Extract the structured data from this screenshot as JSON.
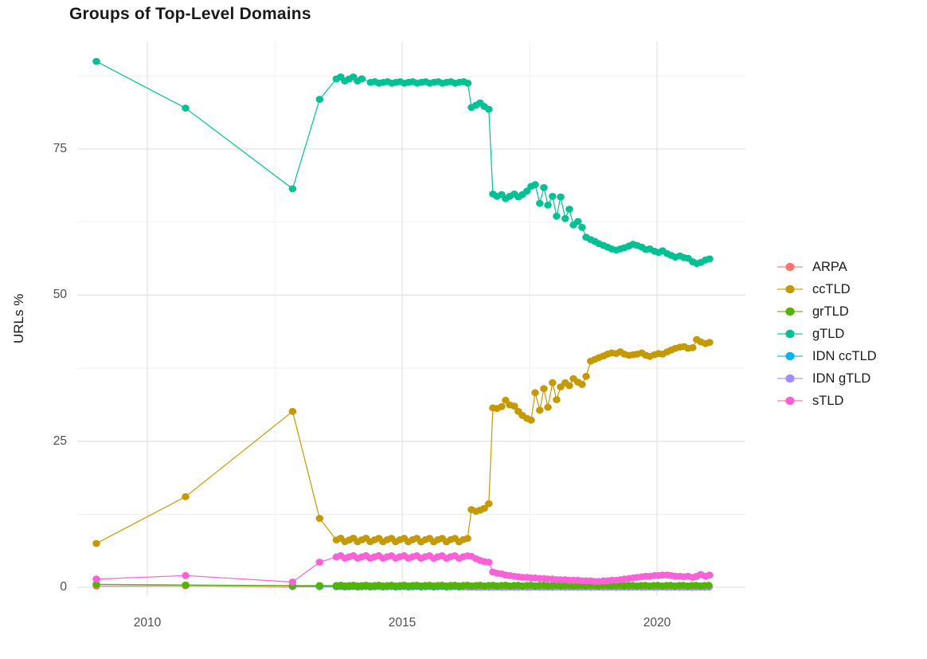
{
  "title": "Groups of Top-Level Domains",
  "chart_data": {
    "type": "line",
    "title": "Groups of Top-Level Domains",
    "xlabel": "",
    "ylabel": "URLs %",
    "x_ticks": [
      2010,
      2015,
      2020
    ],
    "x_minor_ticks": [
      2012.5,
      2017.5
    ],
    "y_ticks": [
      0,
      25,
      50,
      75
    ],
    "y_minor_ticks": [
      12.5,
      37.5,
      62.5,
      87.5
    ],
    "xlim": [
      2008.6,
      2021.7
    ],
    "ylim": [
      -1.5,
      93.5
    ],
    "grid": "on",
    "legend_position": "right",
    "colors": {
      "major_grid": "#e3e3e3",
      "minor_grid": "#efefef",
      "axis_text": "#4d4d4d",
      "title_text": "#1a1a1a"
    },
    "series": [
      {
        "name": "ARPA",
        "color": "#F8766D",
        "points": [
          [
            2009,
            0.2
          ],
          [
            2010.75,
            0.25
          ],
          [
            2012.85,
            0.1
          ],
          [
            2013.38,
            0.1
          ]
        ],
        "runs": [
          {
            "from": 2013.71,
            "to": 2021.03,
            "step": 0.083,
            "level": 0.08,
            "jitter": 0.04
          }
        ]
      },
      {
        "name": "ccTLD",
        "color": "#C49A00",
        "points": [
          [
            2009,
            7.5
          ],
          [
            2010.75,
            15.5
          ],
          [
            2012.85,
            30.1
          ],
          [
            2013.38,
            11.8
          ],
          [
            2016.36,
            13.3
          ],
          [
            2016.45,
            13.0
          ],
          [
            2016.53,
            13.2
          ],
          [
            2016.61,
            13.5
          ],
          [
            2016.7,
            14.3
          ],
          [
            2016.78,
            30.7
          ],
          [
            2016.86,
            30.6
          ],
          [
            2016.95,
            30.9
          ],
          [
            2017.03,
            32.0
          ],
          [
            2017.11,
            31.2
          ],
          [
            2017.2,
            31.0
          ],
          [
            2017.28,
            30.1
          ],
          [
            2017.36,
            29.4
          ],
          [
            2017.45,
            28.9
          ],
          [
            2017.53,
            28.6
          ],
          [
            2017.61,
            33.3
          ],
          [
            2017.7,
            30.3
          ],
          [
            2017.78,
            34.0
          ],
          [
            2017.86,
            30.8
          ],
          [
            2017.95,
            35.0
          ],
          [
            2018.03,
            32.1
          ],
          [
            2018.11,
            34.3
          ],
          [
            2018.2,
            35.0
          ],
          [
            2018.28,
            34.5
          ],
          [
            2018.36,
            35.7
          ],
          [
            2018.45,
            35.1
          ],
          [
            2018.53,
            34.7
          ],
          [
            2018.61,
            36.1
          ],
          [
            2018.7,
            38.7
          ],
          [
            2018.78,
            39.0
          ],
          [
            2018.86,
            39.3
          ],
          [
            2018.95,
            39.6
          ],
          [
            2019.03,
            39.9
          ],
          [
            2019.11,
            40.1
          ],
          [
            2019.2,
            40.0
          ],
          [
            2019.28,
            40.3
          ],
          [
            2019.36,
            39.9
          ],
          [
            2019.45,
            39.7
          ],
          [
            2019.53,
            39.8
          ],
          [
            2019.61,
            39.9
          ],
          [
            2019.7,
            40.1
          ],
          [
            2019.78,
            39.7
          ],
          [
            2019.86,
            39.5
          ],
          [
            2019.95,
            39.8
          ],
          [
            2020.03,
            40.0
          ],
          [
            2020.11,
            39.9
          ],
          [
            2020.2,
            40.3
          ],
          [
            2020.28,
            40.6
          ],
          [
            2020.36,
            40.9
          ],
          [
            2020.45,
            41.1
          ],
          [
            2020.53,
            41.2
          ],
          [
            2020.61,
            40.9
          ],
          [
            2020.7,
            41.0
          ],
          [
            2020.78,
            42.4
          ],
          [
            2020.86,
            42.0
          ],
          [
            2020.95,
            41.7
          ],
          [
            2021.03,
            41.9
          ]
        ],
        "runs": [
          {
            "from": 2013.71,
            "to": 2016.29,
            "step": 0.083,
            "level": 8.1,
            "jitter": 0.35
          }
        ]
      },
      {
        "name": "grTLD",
        "color": "#53B400",
        "points": [
          [
            2009,
            0.5
          ],
          [
            2010.75,
            0.4
          ],
          [
            2012.85,
            0.3
          ],
          [
            2013.38,
            0.3
          ]
        ],
        "runs": [
          {
            "from": 2013.71,
            "to": 2021.03,
            "step": 0.083,
            "level": 0.3,
            "jitter": 0.07
          }
        ]
      },
      {
        "name": "gTLD",
        "color": "#00C094",
        "points": [
          [
            2009,
            90.0
          ],
          [
            2010.75,
            82.0
          ],
          [
            2012.85,
            68.2
          ],
          [
            2013.38,
            83.5
          ],
          [
            2016.36,
            82.1
          ],
          [
            2016.45,
            82.5
          ],
          [
            2016.53,
            82.9
          ],
          [
            2016.61,
            82.3
          ],
          [
            2016.7,
            81.8
          ],
          [
            2016.78,
            67.3
          ],
          [
            2016.86,
            66.9
          ],
          [
            2016.95,
            67.2
          ],
          [
            2017.03,
            66.5
          ],
          [
            2017.11,
            66.9
          ],
          [
            2017.2,
            67.3
          ],
          [
            2017.28,
            66.8
          ],
          [
            2017.36,
            67.2
          ],
          [
            2017.45,
            67.8
          ],
          [
            2017.53,
            68.6
          ],
          [
            2017.61,
            68.9
          ],
          [
            2017.7,
            65.7
          ],
          [
            2017.78,
            68.4
          ],
          [
            2017.86,
            65.4
          ],
          [
            2017.95,
            66.9
          ],
          [
            2018.03,
            63.5
          ],
          [
            2018.11,
            66.8
          ],
          [
            2018.2,
            63.1
          ],
          [
            2018.28,
            64.7
          ],
          [
            2018.36,
            62.0
          ],
          [
            2018.45,
            62.6
          ],
          [
            2018.53,
            61.6
          ],
          [
            2018.61,
            59.9
          ],
          [
            2018.7,
            59.5
          ],
          [
            2018.78,
            59.2
          ],
          [
            2018.86,
            58.8
          ],
          [
            2018.95,
            58.5
          ],
          [
            2019.03,
            58.2
          ],
          [
            2019.11,
            57.9
          ],
          [
            2019.2,
            57.7
          ],
          [
            2019.28,
            57.9
          ],
          [
            2019.36,
            58.1
          ],
          [
            2019.45,
            58.4
          ],
          [
            2019.53,
            58.7
          ],
          [
            2019.61,
            58.5
          ],
          [
            2019.7,
            58.2
          ],
          [
            2019.78,
            57.8
          ],
          [
            2019.86,
            57.9
          ],
          [
            2019.95,
            57.5
          ],
          [
            2020.03,
            57.3
          ],
          [
            2020.11,
            57.6
          ],
          [
            2020.2,
            57.1
          ],
          [
            2020.28,
            56.8
          ],
          [
            2020.36,
            56.5
          ],
          [
            2020.45,
            56.7
          ],
          [
            2020.53,
            56.4
          ],
          [
            2020.61,
            56.3
          ],
          [
            2020.7,
            55.7
          ],
          [
            2020.78,
            55.4
          ],
          [
            2020.86,
            55.6
          ],
          [
            2020.95,
            56.0
          ],
          [
            2021.03,
            56.2
          ]
        ],
        "runs": [
          {
            "from": 2013.71,
            "to": 2014.29,
            "step": 0.083,
            "level": 87.0,
            "jitter": 0.4
          },
          {
            "from": 2014.38,
            "to": 2016.29,
            "step": 0.083,
            "level": 86.4,
            "jitter": 0.15
          }
        ]
      },
      {
        "name": "IDN ccTLD",
        "color": "#00B6EB",
        "points": [
          [
            2012.85,
            0.2
          ],
          [
            2013.38,
            0.15
          ]
        ],
        "runs": [
          {
            "from": 2013.71,
            "to": 2021.03,
            "step": 0.083,
            "level": 0.12,
            "jitter": 0.05
          }
        ]
      },
      {
        "name": "IDN gTLD",
        "color": "#A58AFF",
        "points": [],
        "runs": [
          {
            "from": 2016.29,
            "to": 2021.03,
            "step": 0.083,
            "level": 0.02,
            "jitter": 0.02
          }
        ]
      },
      {
        "name": "sTLD",
        "color": "#FB61D7",
        "points": [
          [
            2009,
            1.4
          ],
          [
            2010.75,
            2.0
          ],
          [
            2012.85,
            0.9
          ],
          [
            2013.38,
            4.3
          ],
          [
            2016.36,
            5.3
          ],
          [
            2016.45,
            4.9
          ],
          [
            2016.53,
            4.6
          ],
          [
            2016.61,
            4.4
          ],
          [
            2016.7,
            4.3
          ],
          [
            2016.78,
            2.6
          ],
          [
            2016.86,
            2.4
          ],
          [
            2016.95,
            2.3
          ],
          [
            2017.03,
            2.1
          ],
          [
            2017.11,
            2.0
          ],
          [
            2017.2,
            1.9
          ],
          [
            2017.28,
            1.8
          ],
          [
            2017.36,
            1.7
          ],
          [
            2017.45,
            1.7
          ],
          [
            2017.53,
            1.6
          ],
          [
            2017.61,
            1.6
          ],
          [
            2017.7,
            1.5
          ],
          [
            2017.78,
            1.5
          ],
          [
            2017.86,
            1.4
          ],
          [
            2017.95,
            1.4
          ],
          [
            2018.03,
            1.3
          ],
          [
            2018.11,
            1.3
          ],
          [
            2018.2,
            1.3
          ],
          [
            2018.28,
            1.2
          ],
          [
            2018.36,
            1.2
          ],
          [
            2018.45,
            1.2
          ],
          [
            2018.53,
            1.1
          ],
          [
            2018.61,
            1.1
          ],
          [
            2018.7,
            1.1
          ],
          [
            2018.78,
            1.0
          ],
          [
            2018.86,
            1.0
          ],
          [
            2018.95,
            1.1
          ],
          [
            2019.03,
            1.1
          ],
          [
            2019.11,
            1.2
          ],
          [
            2019.2,
            1.2
          ],
          [
            2019.28,
            1.3
          ],
          [
            2019.36,
            1.4
          ],
          [
            2019.45,
            1.5
          ],
          [
            2019.53,
            1.6
          ],
          [
            2019.61,
            1.7
          ],
          [
            2019.7,
            1.8
          ],
          [
            2019.78,
            1.9
          ],
          [
            2019.86,
            1.9
          ],
          [
            2019.95,
            2.0
          ],
          [
            2020.03,
            2.0
          ],
          [
            2020.11,
            2.1
          ],
          [
            2020.2,
            2.1
          ],
          [
            2020.28,
            2.0
          ],
          [
            2020.36,
            1.9
          ],
          [
            2020.45,
            1.9
          ],
          [
            2020.53,
            1.8
          ],
          [
            2020.61,
            1.9
          ],
          [
            2020.7,
            1.7
          ],
          [
            2020.78,
            1.9
          ],
          [
            2020.86,
            2.2
          ],
          [
            2020.95,
            1.9
          ],
          [
            2021.03,
            2.1
          ]
        ],
        "runs": [
          {
            "from": 2013.71,
            "to": 2016.29,
            "step": 0.083,
            "level": 5.2,
            "jitter": 0.25
          }
        ]
      }
    ]
  }
}
